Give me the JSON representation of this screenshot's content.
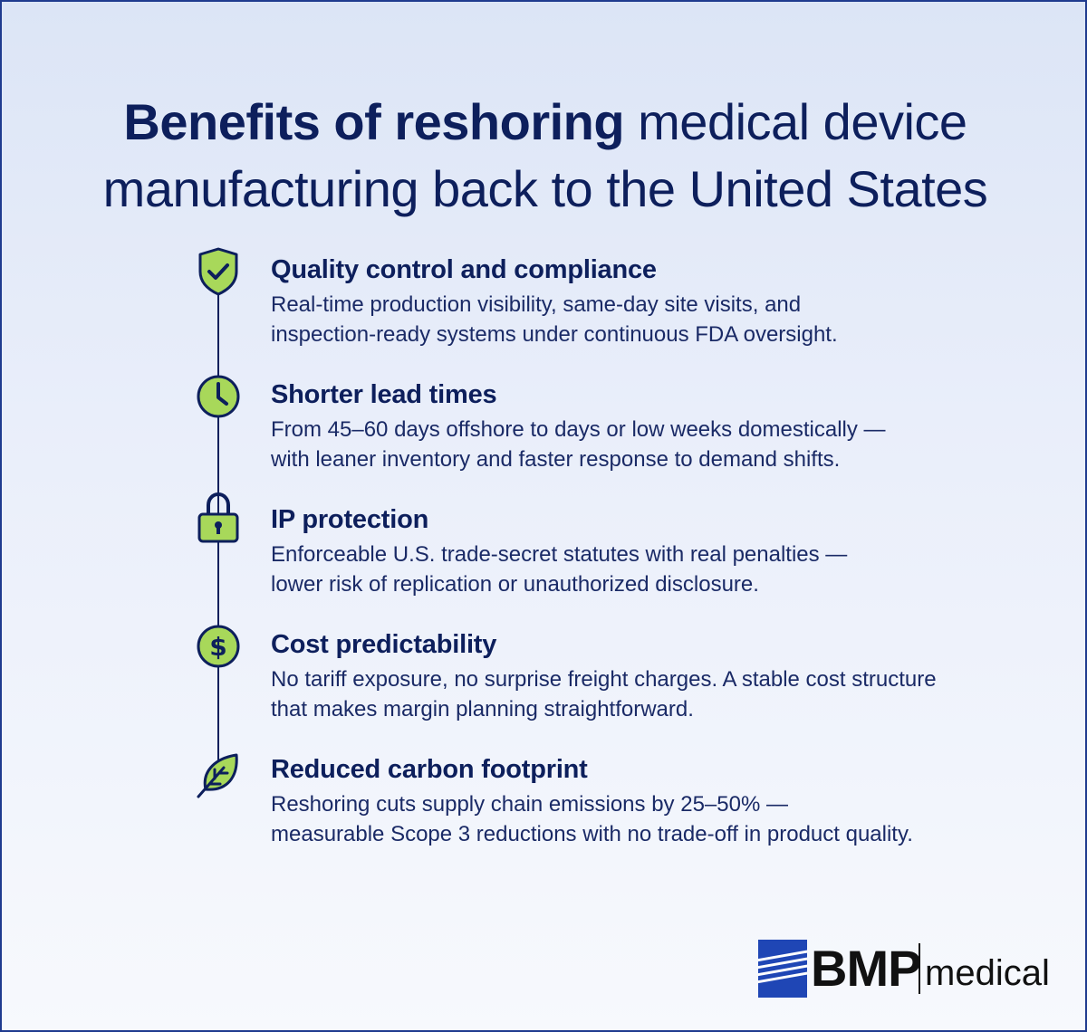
{
  "title": {
    "bold": "Benefits of reshoring",
    "line1_rest": "medical device",
    "line2": "manufacturing back to the United States"
  },
  "items": [
    {
      "icon": "shield-check-icon",
      "title": "Quality control and compliance",
      "line1": "Real-time production visibility, same-day site visits, and",
      "line2": "inspection-ready systems under continuous FDA oversight."
    },
    {
      "icon": "clock-icon",
      "title": "Shorter lead times",
      "line1": "From 45–60 days offshore to days or low weeks domestically —",
      "line2": "with leaner inventory and faster response to demand shifts."
    },
    {
      "icon": "lock-icon",
      "title": "IP protection",
      "line1": "Enforceable U.S. trade-secret statutes with real penalties —",
      "line2": "lower risk of replication or unauthorized disclosure."
    },
    {
      "icon": "dollar-icon",
      "title": "Cost predictability",
      "line1": "No tariff exposure, no surprise freight charges. A stable cost structure",
      "line2": "that makes margin planning straightforward."
    },
    {
      "icon": "leaf-icon",
      "title": "Reduced carbon footprint",
      "line1": "Reshoring cuts supply chain emissions by 25–50% —",
      "line2": "measurable Scope 3 reductions with no trade-off in product quality."
    }
  ],
  "logo": {
    "brand": "BMP",
    "sub": "medical"
  },
  "colors": {
    "navy": "#0d1f5c",
    "icon_fill": "#a8d85a",
    "logo_blue": "#1f46b5"
  }
}
